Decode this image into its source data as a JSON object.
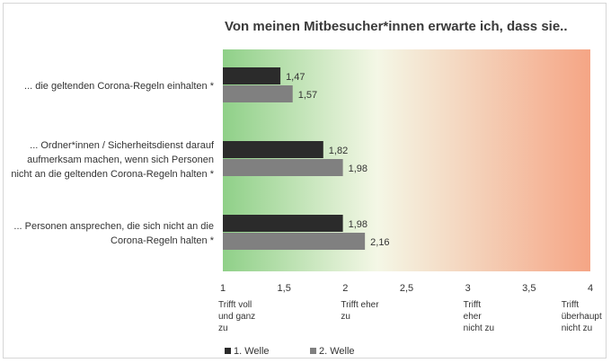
{
  "chart_data": {
    "type": "bar",
    "orientation": "horizontal",
    "title": "Von meinen Mitbesucher*innen erwarte ich, dass sie..",
    "categories": [
      [
        "... die geltenden Corona-Regeln einhalten *"
      ],
      [
        "... Ordner*innen / Sicherheitsdienst darauf",
        "aufmerksam machen, wenn sich Personen",
        "nicht an die geltenden Corona-Regeln halten *"
      ],
      [
        "... Personen ansprechen, die sich nicht an die",
        "Corona-Regeln halten *"
      ]
    ],
    "series": [
      {
        "name": "1. Welle",
        "values": [
          1.47,
          1.82,
          1.98
        ],
        "labels": [
          "1,47",
          "1,82",
          "1,98"
        ],
        "color": "#2b2b2b"
      },
      {
        "name": "2. Welle",
        "values": [
          1.57,
          1.98,
          2.16
        ],
        "labels": [
          "1,57",
          "1,98",
          "2,16"
        ],
        "color": "#808080"
      }
    ],
    "xlim": [
      1,
      4
    ],
    "xticks": [
      1,
      1.5,
      2,
      2.5,
      3,
      3.5,
      4
    ],
    "xtick_labels": [
      "1",
      "1,5",
      "2",
      "2,5",
      "3",
      "3,5",
      "4"
    ],
    "scale_labels": [
      {
        "at": 1,
        "lines": [
          "Trifft voll",
          "und ganz",
          "zu"
        ]
      },
      {
        "at": 2,
        "lines": [
          "Trifft eher",
          "zu"
        ]
      },
      {
        "at": 3,
        "lines": [
          "Trifft",
          "eher",
          "nicht zu"
        ]
      },
      {
        "at": 3.8,
        "lines": [
          "Trifft",
          "überhaupt",
          "nicht zu"
        ]
      }
    ],
    "legend": "bottom-left",
    "background_gradient": [
      "#8fd088",
      "#f4f7e6",
      "#f5a585"
    ]
  }
}
